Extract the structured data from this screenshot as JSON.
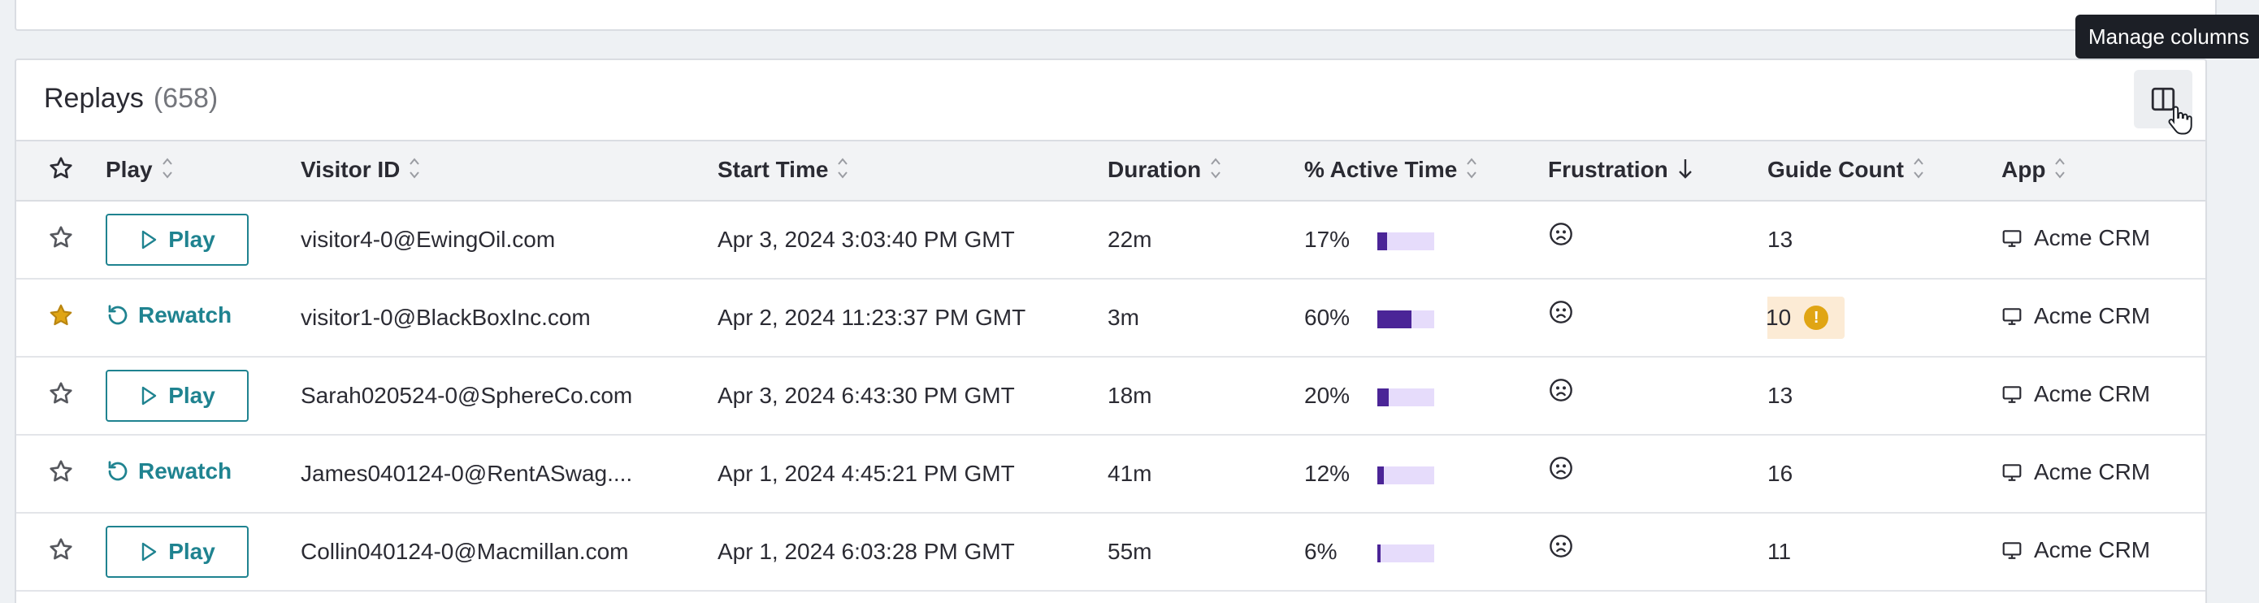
{
  "replays": {
    "title": "Replays",
    "count": "(658)",
    "manage_columns_tooltip": "Manage columns",
    "columns": {
      "play": "Play",
      "visitor_id": "Visitor ID",
      "start_time": "Start Time",
      "duration": "Duration",
      "active_time": "% Active Time",
      "frustration": "Frustration",
      "guide_count": "Guide Count",
      "app": "App"
    },
    "rows": [
      {
        "starred": false,
        "action": "Play",
        "visitor": "visitor4-0@EwingOil.com",
        "start": "Apr 3, 2024 3:03:40 PM GMT",
        "duration": "22m",
        "active": "17%",
        "active_value": 0.17,
        "guide_count": "13",
        "guide_warning": false,
        "app": "Acme CRM"
      },
      {
        "starred": true,
        "action": "Rewatch",
        "visitor": "visitor1-0@BlackBoxInc.com",
        "start": "Apr 2, 2024 11:23:37 PM GMT",
        "duration": "3m",
        "active": "60%",
        "active_value": 0.6,
        "guide_count": "10",
        "guide_warning": true,
        "app": "Acme CRM"
      },
      {
        "starred": false,
        "action": "Play",
        "visitor": "Sarah020524-0@SphereCo.com",
        "start": "Apr 3, 2024 6:43:30 PM GMT",
        "duration": "18m",
        "active": "20%",
        "active_value": 0.2,
        "guide_count": "13",
        "guide_warning": false,
        "app": "Acme CRM"
      },
      {
        "starred": false,
        "action": "Rewatch",
        "visitor": "James040124-0@RentASwag....",
        "start": "Apr 1, 2024 4:45:21 PM GMT",
        "duration": "41m",
        "active": "12%",
        "active_value": 0.12,
        "guide_count": "16",
        "guide_warning": false,
        "app": "Acme CRM"
      },
      {
        "starred": false,
        "action": "Play",
        "visitor": "Collin040124-0@Macmillan.com",
        "start": "Apr 1, 2024 6:03:28 PM GMT",
        "duration": "55m",
        "active": "6%",
        "active_value": 0.06,
        "guide_count": "11",
        "guide_warning": false,
        "app": "Acme CRM"
      }
    ]
  },
  "icons": {
    "star": "star-icon",
    "play": "play-icon",
    "rewatch": "rewatch-icon",
    "frown": "frown-icon",
    "monitor": "monitor-icon",
    "manage_columns": "columns-icon"
  },
  "colors": {
    "accent": "#1f8390",
    "bar_fill": "#4b2597",
    "bar_track": "#e6dcfb",
    "star_active": "#e0a514",
    "warning_bg": "#fcebd5"
  }
}
